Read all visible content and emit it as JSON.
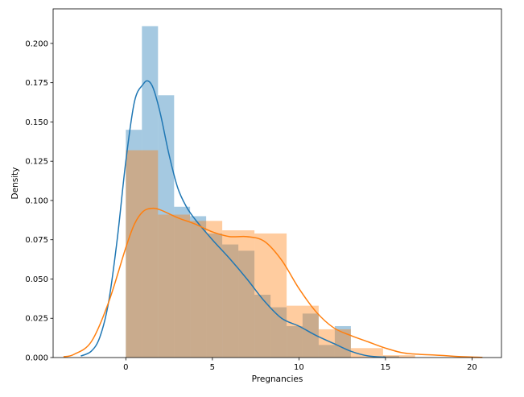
{
  "chart_data": {
    "type": "histogram-kde",
    "title": "",
    "xlabel": "Pregnancies",
    "ylabel": "Density",
    "xlim": [
      -4.2,
      21.7
    ],
    "ylim": [
      0,
      0.222
    ],
    "grid": false,
    "x_ticks": [
      0,
      5,
      10,
      15,
      20
    ],
    "x_tick_labels": [
      "0",
      "5",
      "10",
      "15",
      "20"
    ],
    "y_ticks": [
      0,
      0.025,
      0.05,
      0.075,
      0.1,
      0.125,
      0.15,
      0.175,
      0.2
    ],
    "y_tick_labels": [
      "0.000",
      "0.025",
      "0.050",
      "0.075",
      "0.100",
      "0.125",
      "0.150",
      "0.175",
      "0.200"
    ],
    "series": [
      {
        "color": "#1f77b4",
        "hist_alpha": 0.4,
        "bins": [
          {
            "x0": 0,
            "x1": 0.93,
            "y": 0.145
          },
          {
            "x0": 0.93,
            "x1": 1.86,
            "y": 0.211
          },
          {
            "x0": 1.86,
            "x1": 2.79,
            "y": 0.167
          },
          {
            "x0": 2.79,
            "x1": 3.71,
            "y": 0.096
          },
          {
            "x0": 3.71,
            "x1": 4.64,
            "y": 0.09
          },
          {
            "x0": 4.64,
            "x1": 5.57,
            "y": 0.079
          },
          {
            "x0": 5.57,
            "x1": 6.5,
            "y": 0.072
          },
          {
            "x0": 6.5,
            "x1": 7.43,
            "y": 0.068
          },
          {
            "x0": 7.43,
            "x1": 8.36,
            "y": 0.04
          },
          {
            "x0": 8.36,
            "x1": 9.29,
            "y": 0.032
          },
          {
            "x0": 9.29,
            "x1": 10.21,
            "y": 0.02
          },
          {
            "x0": 10.21,
            "x1": 11.14,
            "y": 0.028
          },
          {
            "x0": 11.14,
            "x1": 12.07,
            "y": 0.008
          },
          {
            "x0": 12.07,
            "x1": 13.0,
            "y": 0.02
          },
          {
            "x0": 13.0,
            "x1": 13.93,
            "y": 0
          },
          {
            "x0": 13.93,
            "x1": 14.86,
            "y": 0
          },
          {
            "x0": 14.86,
            "x1": 15.79,
            "y": 0.001
          }
        ],
        "kde": {
          "x": [
            -2.6,
            -2.0,
            -1.5,
            -1.0,
            -0.5,
            0,
            0.5,
            1.0,
            1.3,
            1.6,
            2.0,
            2.5,
            3.0,
            3.5,
            4.0,
            5.0,
            6.0,
            7.0,
            8.0,
            9.0,
            10.0,
            11.0,
            12.0,
            13.0,
            14.0,
            15.0
          ],
          "y": [
            0.001,
            0.004,
            0.013,
            0.035,
            0.075,
            0.125,
            0.163,
            0.174,
            0.176,
            0.171,
            0.155,
            0.129,
            0.108,
            0.096,
            0.088,
            0.075,
            0.063,
            0.05,
            0.036,
            0.025,
            0.02,
            0.014,
            0.009,
            0.004,
            0.001,
            0.0002
          ]
        }
      },
      {
        "color": "#ff7f0e",
        "hist_alpha": 0.4,
        "bins": [
          {
            "x0": 0,
            "x1": 1.86,
            "y": 0.132
          },
          {
            "x0": 1.86,
            "x1": 3.71,
            "y": 0.091
          },
          {
            "x0": 3.71,
            "x1": 5.57,
            "y": 0.087
          },
          {
            "x0": 5.57,
            "x1": 7.43,
            "y": 0.081
          },
          {
            "x0": 7.43,
            "x1": 9.29,
            "y": 0.079
          },
          {
            "x0": 9.29,
            "x1": 11.14,
            "y": 0.033
          },
          {
            "x0": 11.14,
            "x1": 13.0,
            "y": 0.018
          },
          {
            "x0": 13.0,
            "x1": 14.86,
            "y": 0.006
          },
          {
            "x0": 14.86,
            "x1": 16.71,
            "y": 0.0015
          },
          {
            "x0": 16.71,
            "x1": 18.57,
            "y": 0
          }
        ],
        "kde": {
          "x": [
            -3.6,
            -3.0,
            -2.0,
            -1.0,
            0,
            0.5,
            1.0,
            1.5,
            2.0,
            3.0,
            4.0,
            5.0,
            6.0,
            7.0,
            8.0,
            9.0,
            10.0,
            11.0,
            12.0,
            13.0,
            14.0,
            15.0,
            16.0,
            17.0,
            18.0,
            19.0,
            20.0,
            20.6
          ],
          "y": [
            0.0005,
            0.002,
            0.01,
            0.035,
            0.07,
            0.085,
            0.093,
            0.095,
            0.094,
            0.089,
            0.085,
            0.08,
            0.077,
            0.077,
            0.074,
            0.062,
            0.044,
            0.029,
            0.019,
            0.014,
            0.01,
            0.006,
            0.003,
            0.002,
            0.0015,
            0.0008,
            0.0003,
            0.0001
          ]
        }
      }
    ]
  }
}
